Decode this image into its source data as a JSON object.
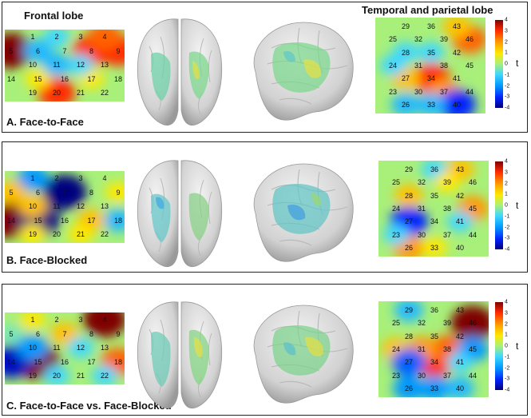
{
  "headers": {
    "frontal": "Frontal lobe",
    "temporal": "Temporal and parietal lobe"
  },
  "colorbar": {
    "label": "t",
    "ticks": [
      "4",
      "3",
      "2",
      "1",
      "0",
      "-1",
      "-2",
      "-3",
      "-4"
    ]
  },
  "frontal_channels": [
    {
      "n": "1"
    },
    {
      "n": "2"
    },
    {
      "n": "3"
    },
    {
      "n": "4"
    },
    {
      "n": "5"
    },
    {
      "n": "6"
    },
    {
      "n": "7"
    },
    {
      "n": "8"
    },
    {
      "n": "9"
    },
    {
      "n": "10"
    },
    {
      "n": "11"
    },
    {
      "n": "12"
    },
    {
      "n": "13"
    },
    {
      "n": "14"
    },
    {
      "n": "15"
    },
    {
      "n": "16"
    },
    {
      "n": "17"
    },
    {
      "n": "18"
    },
    {
      "n": "19"
    },
    {
      "n": "20"
    },
    {
      "n": "21"
    },
    {
      "n": "22"
    }
  ],
  "temporal_channels": [
    {
      "n": "29"
    },
    {
      "n": "36"
    },
    {
      "n": "43"
    },
    {
      "n": "25"
    },
    {
      "n": "32"
    },
    {
      "n": "39"
    },
    {
      "n": "46"
    },
    {
      "n": "28"
    },
    {
      "n": "35"
    },
    {
      "n": "42"
    },
    {
      "n": "24"
    },
    {
      "n": "31"
    },
    {
      "n": "38"
    },
    {
      "n": "45"
    },
    {
      "n": "27"
    },
    {
      "n": "34"
    },
    {
      "n": "41"
    },
    {
      "n": "23"
    },
    {
      "n": "30"
    },
    {
      "n": "37"
    },
    {
      "n": "44"
    },
    {
      "n": "26"
    },
    {
      "n": "33"
    },
    {
      "n": "40"
    }
  ],
  "panels": [
    {
      "label": "A. Face-to-Face",
      "frontal_blobs": [
        {
          "ch": "5",
          "t": 4
        },
        {
          "ch": "8",
          "t": 3
        },
        {
          "ch": "9",
          "t": 3
        },
        {
          "ch": "4",
          "t": 2.5
        },
        {
          "ch": "20",
          "t": 3
        },
        {
          "ch": "15",
          "t": 1
        },
        {
          "ch": "17",
          "t": 1
        },
        {
          "ch": "6",
          "t": -1.5
        },
        {
          "ch": "11",
          "t": -1.5
        },
        {
          "ch": "12",
          "t": -1
        },
        {
          "ch": "2",
          "t": -1
        }
      ],
      "temporal_blobs": [
        {
          "ch": "34",
          "t": 3
        },
        {
          "ch": "37",
          "t": 2
        },
        {
          "ch": "46",
          "t": 2.5
        },
        {
          "ch": "43",
          "t": 1.5
        },
        {
          "ch": "27",
          "t": 1.5
        },
        {
          "ch": "40",
          "t": -3
        },
        {
          "ch": "26",
          "t": -1.5
        },
        {
          "ch": "33",
          "t": -1.5
        },
        {
          "ch": "28",
          "t": -1
        },
        {
          "ch": "35",
          "t": -1
        },
        {
          "ch": "24",
          "t": -1
        }
      ]
    },
    {
      "label": "B. Face-Blocked",
      "frontal_blobs": [
        {
          "ch": "14",
          "t": 4
        },
        {
          "ch": "15",
          "t": -4
        },
        {
          "ch": "7",
          "t": -4
        },
        {
          "ch": "1",
          "t": -2
        },
        {
          "ch": "5",
          "t": 1.5
        },
        {
          "ch": "10",
          "t": 1.5
        },
        {
          "ch": "17",
          "t": 1.5
        },
        {
          "ch": "18",
          "t": -1.5
        },
        {
          "ch": "9",
          "t": 1
        },
        {
          "ch": "19",
          "t": 1
        },
        {
          "ch": "21",
          "t": 1
        }
      ],
      "temporal_blobs": [
        {
          "ch": "27",
          "t": -3
        },
        {
          "ch": "45",
          "t": 2
        },
        {
          "ch": "28",
          "t": 1.5
        },
        {
          "ch": "26",
          "t": 2
        },
        {
          "ch": "43",
          "t": 1.5
        },
        {
          "ch": "41",
          "t": -1
        },
        {
          "ch": "23",
          "t": -1
        },
        {
          "ch": "36",
          "t": -1
        },
        {
          "ch": "39",
          "t": 1
        },
        {
          "ch": "33",
          "t": 1
        }
      ]
    },
    {
      "label": "C. Face-to-Face vs. Face-Blocked",
      "frontal_blobs": [
        {
          "ch": "4",
          "t": 4
        },
        {
          "ch": "15",
          "t": 4
        },
        {
          "ch": "14",
          "t": -3.5
        },
        {
          "ch": "18",
          "t": 2.5
        },
        {
          "ch": "10",
          "t": -2
        },
        {
          "ch": "7",
          "t": 1.5
        },
        {
          "ch": "5",
          "t": -0.5
        },
        {
          "ch": "1",
          "t": 1
        },
        {
          "ch": "20",
          "t": -1
        },
        {
          "ch": "22",
          "t": -1
        },
        {
          "ch": "12",
          "t": -1
        }
      ],
      "temporal_blobs": [
        {
          "ch": "46",
          "t": 4
        },
        {
          "ch": "34",
          "t": 3
        },
        {
          "ch": "38",
          "t": 2.5
        },
        {
          "ch": "31",
          "t": 2
        },
        {
          "ch": "24",
          "t": 1.5
        },
        {
          "ch": "45",
          "t": -2
        },
        {
          "ch": "27",
          "t": -2.5
        },
        {
          "ch": "26",
          "t": -2
        },
        {
          "ch": "33",
          "t": -2
        },
        {
          "ch": "40",
          "t": -1.5
        },
        {
          "ch": "29",
          "t": -1.5
        },
        {
          "ch": "41",
          "t": -1
        }
      ]
    }
  ]
}
